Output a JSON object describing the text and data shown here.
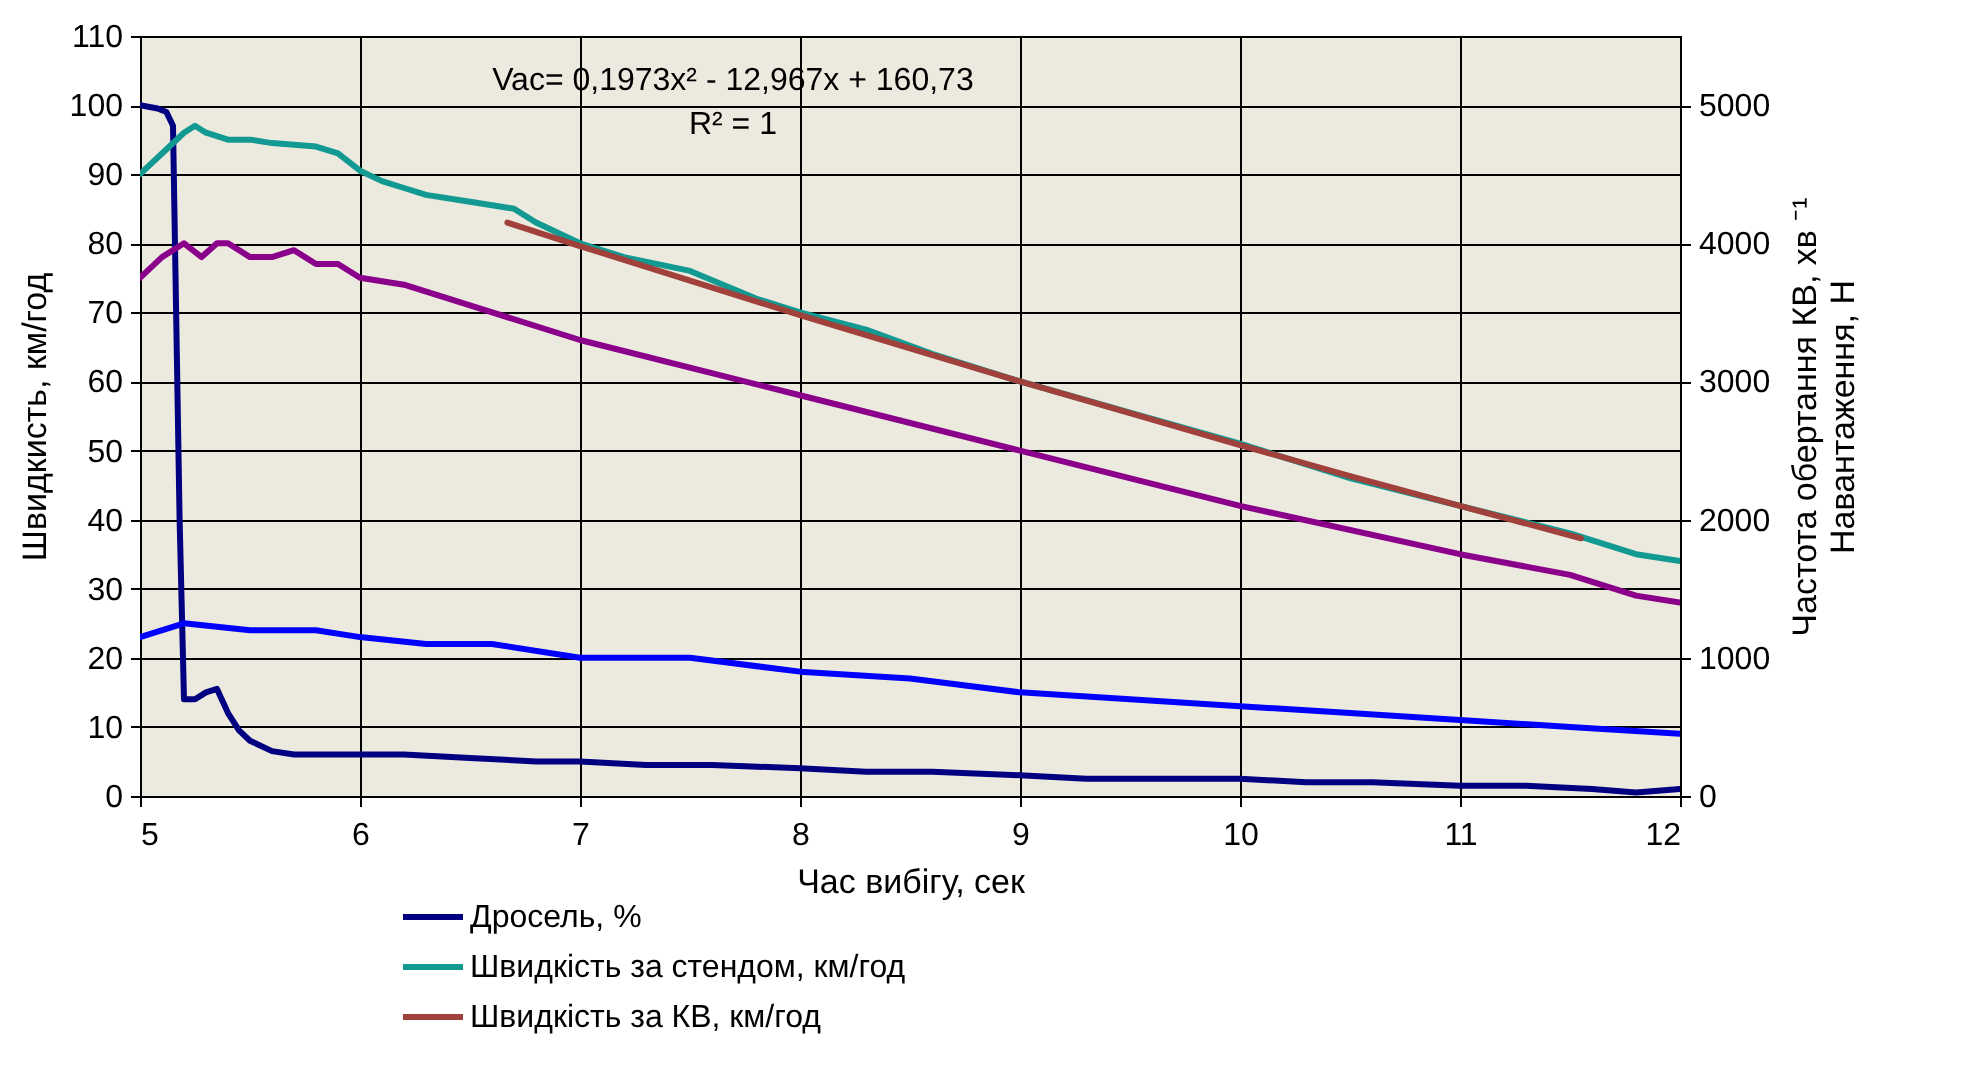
{
  "chart_data": {
    "type": "line",
    "xlabel": "Час вибігу, сек",
    "ylabel": "Швидкисть, км/год",
    "y2label": [
      "Частота обертання КВ, хв ⁻¹",
      "Навантаження, Н"
    ],
    "xlim": [
      5,
      12
    ],
    "xticks": [
      5,
      6,
      7,
      8,
      9,
      10,
      11,
      12
    ],
    "ylim": [
      0,
      110
    ],
    "yticks": [
      0,
      10,
      20,
      30,
      40,
      50,
      60,
      70,
      80,
      90,
      100,
      110
    ],
    "y2lim": [
      0,
      5500
    ],
    "y2ticks": [
      0,
      1000,
      2000,
      3000,
      4000,
      5000
    ],
    "grid": true,
    "legend": "bottom",
    "marker": "none",
    "line_style": "solid",
    "annotations": [
      "Vac= 0,1973x² - 12,967x + 160,73",
      "R² = 1"
    ],
    "series": [
      {
        "name": "Дросель, %",
        "color": "#000080",
        "x": [
          5,
          5.08,
          5.12,
          5.15,
          5.18,
          5.2,
          5.25,
          5.3,
          5.35,
          5.4,
          5.45,
          5.5,
          5.6,
          5.7,
          5.8,
          6,
          6.2,
          6.5,
          6.8,
          7,
          7.3,
          7.6,
          8,
          8.3,
          8.6,
          9,
          9.3,
          9.6,
          10,
          10.3,
          10.6,
          11,
          11.3,
          11.6,
          11.8,
          12
        ],
        "values": [
          100,
          99.5,
          99,
          97,
          40,
          14,
          14,
          15,
          15.5,
          12,
          9.5,
          8,
          6.5,
          6,
          6,
          6,
          6,
          5.5,
          5,
          5,
          4.5,
          4.5,
          4,
          3.5,
          3.5,
          3,
          2.5,
          2.5,
          2.5,
          2,
          2,
          1.5,
          1.5,
          1,
          0.5,
          1
        ]
      },
      {
        "name": "Швидкість за стендом, км/год",
        "color": "#129a92",
        "x": [
          5,
          5.1,
          5.2,
          5.25,
          5.3,
          5.4,
          5.5,
          5.6,
          5.8,
          5.9,
          6,
          6.1,
          6.2,
          6.3,
          6.5,
          6.6,
          6.7,
          6.8,
          7,
          7.2,
          7.5,
          7.8,
          8,
          8.3,
          8.6,
          9,
          9.5,
          10,
          10.5,
          11,
          11.5,
          11.8,
          12
        ],
        "values": [
          90,
          93,
          96,
          97,
          96,
          95,
          95,
          94.5,
          94,
          93,
          90.5,
          89,
          88,
          87,
          86,
          85.5,
          85,
          83,
          80,
          78,
          76,
          72,
          70,
          67.5,
          64,
          60,
          55.5,
          51,
          46,
          42,
          38,
          35,
          34
        ]
      },
      {
        "name": "Швидкість за КВ, км/год",
        "color": "#a0413c",
        "x": [
          6.67,
          7,
          7.5,
          8,
          8.5,
          9,
          9.5,
          10,
          10.5,
          11,
          11.55
        ],
        "values": [
          83.0,
          79.6,
          74.6,
          69.6,
          64.8,
          60.0,
          55.4,
          50.8,
          46.3,
          42.0,
          37.3
        ]
      },
      {
        "color": "#8b008b",
        "axis": "y2",
        "x": [
          5,
          5.1,
          5.2,
          5.28,
          5.35,
          5.4,
          5.5,
          5.6,
          5.7,
          5.8,
          5.9,
          6,
          6.2,
          6.5,
          7,
          8,
          9,
          10,
          11,
          11.5,
          11.8,
          12
        ],
        "values": [
          3750,
          3900,
          4000,
          3900,
          4000,
          4000,
          3900,
          3900,
          3950,
          3850,
          3850,
          3750,
          3700,
          3550,
          3300,
          2900,
          2500,
          2100,
          1750,
          1600,
          1450,
          1400
        ]
      },
      {
        "color": "#0000ff",
        "axis": "y2",
        "x": [
          5,
          5.2,
          5.5,
          5.8,
          6,
          6.3,
          6.6,
          7,
          7.5,
          8,
          8.5,
          9,
          9.5,
          10,
          10.5,
          11,
          11.5,
          12
        ],
        "values": [
          1150,
          1250,
          1200,
          1200,
          1150,
          1100,
          1100,
          1000,
          1000,
          900,
          850,
          750,
          700,
          650,
          600,
          550,
          500,
          450
        ]
      }
    ]
  }
}
